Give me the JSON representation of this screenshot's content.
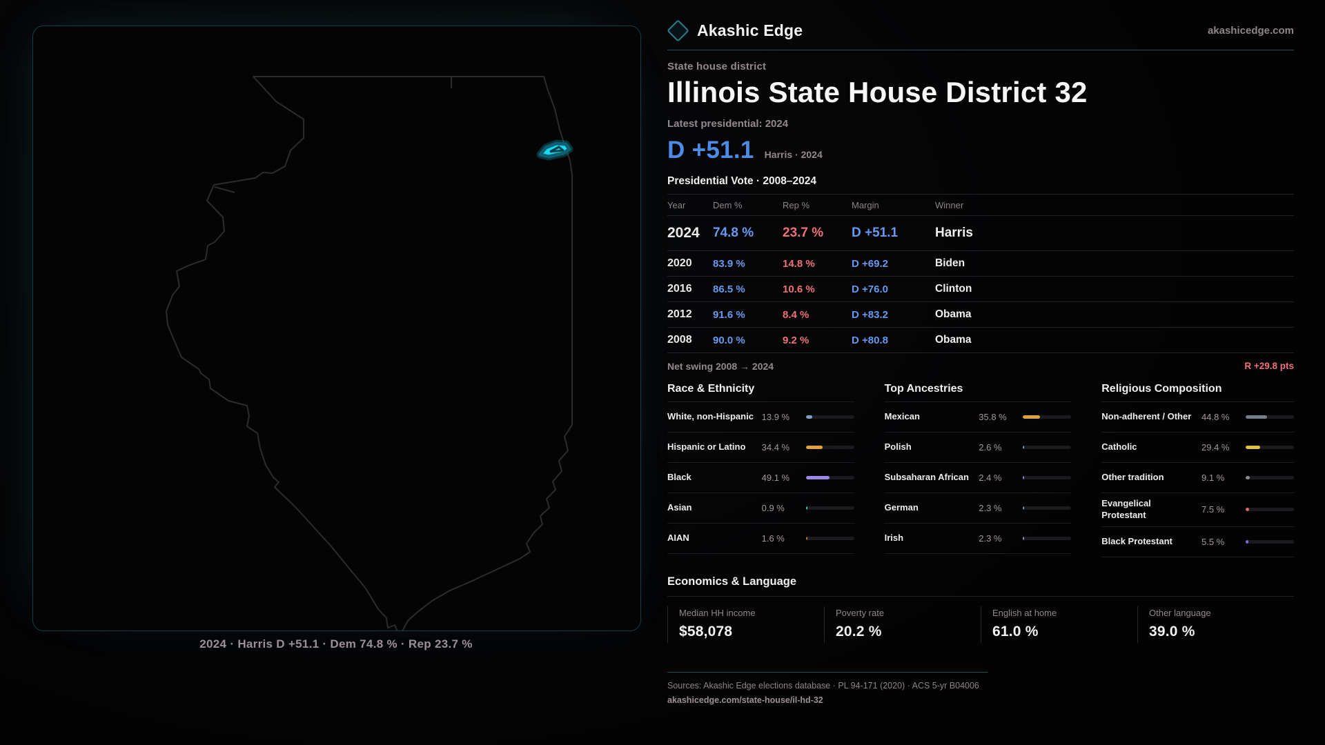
{
  "brand": {
    "name": "Akashic Edge",
    "domain": "akashicedge.com",
    "logo_icon": "diamond-icon",
    "accent_teal": "#2c7f92"
  },
  "page": {
    "eyebrow": "State house district",
    "title": "Illinois State House District 32",
    "latest_label": "Latest presidential: 2024",
    "headline_margin": "D +51.1",
    "headline_note": "Harris · 2024"
  },
  "map": {
    "caption": "2024 · Harris D +51.1 · Dem 74.8 % · Rep 23.7 %",
    "district_fill": "#1fd7f0",
    "district_stroke": "#0d5f72",
    "outline_color": "#2c2c30"
  },
  "vote_table": {
    "title": "Presidential Vote · 2008–2024",
    "columns": [
      "Year",
      "Dem %",
      "Rep %",
      "Margin",
      "Winner"
    ],
    "rows": [
      {
        "year": "2024",
        "dem": "74.8 %",
        "rep": "23.7 %",
        "margin": "D +51.1",
        "winner": "Harris",
        "highlight": true
      },
      {
        "year": "2020",
        "dem": "83.9 %",
        "rep": "14.8 %",
        "margin": "D +69.2",
        "winner": "Biden",
        "highlight": false
      },
      {
        "year": "2016",
        "dem": "86.5 %",
        "rep": "10.6 %",
        "margin": "D +76.0",
        "winner": "Clinton",
        "highlight": false
      },
      {
        "year": "2012",
        "dem": "91.6 %",
        "rep": "8.4 %",
        "margin": "D +83.2",
        "winner": "Obama",
        "highlight": false
      },
      {
        "year": "2008",
        "dem": "90.0 %",
        "rep": "9.2 %",
        "margin": "D +80.8",
        "winner": "Obama",
        "highlight": false
      }
    ],
    "dem_color": "#679af0",
    "rep_color": "#ef7179",
    "net_swing_label": "Net swing 2008 → 2024",
    "net_swing_value": "R +29.8 pts"
  },
  "chart_data": [
    {
      "type": "bar",
      "title": "Race & Ethnicity",
      "categories": [
        "White, non-Hispanic",
        "Hispanic or Latino",
        "Black",
        "Asian",
        "AIAN"
      ],
      "values": [
        13.9,
        34.4,
        49.1,
        0.9,
        1.6
      ],
      "value_labels": [
        "13.9 %",
        "34.4 %",
        "49.1 %",
        "0.9 %",
        "1.6 %"
      ],
      "bar_colors": [
        "#7f9fc4",
        "#e2a23b",
        "#9d85ea",
        "#3ecfa5",
        "#cf7a33"
      ],
      "xlim": [
        0,
        100
      ]
    },
    {
      "type": "bar",
      "title": "Top Ancestries",
      "categories": [
        "Mexican",
        "Polish",
        "Subsaharan African",
        "German",
        "Irish"
      ],
      "values": [
        35.8,
        2.6,
        2.4,
        2.3,
        2.3
      ],
      "value_labels": [
        "35.8 %",
        "2.6 %",
        "2.4 %",
        "2.3 %",
        "2.3 %"
      ],
      "bar_colors": [
        "#e2a23b",
        "#7f9fc4",
        "#9d85ea",
        "#7f9fc4",
        "#7f9fc4"
      ],
      "xlim": [
        0,
        100
      ]
    },
    {
      "type": "bar",
      "title": "Religious Composition",
      "categories": [
        "Non-adherent / Other",
        "Catholic",
        "Other tradition",
        "Evangelical Protestant",
        "Black Protestant"
      ],
      "values": [
        44.8,
        29.4,
        9.1,
        7.5,
        5.5
      ],
      "value_labels": [
        "44.8 %",
        "29.4 %",
        "9.1 %",
        "7.5 %",
        "5.5 %"
      ],
      "bar_colors": [
        "#747e8d",
        "#e0c23c",
        "#8b8b92",
        "#e06a6a",
        "#7a6ae8"
      ],
      "xlim": [
        0,
        100
      ]
    }
  ],
  "economics": {
    "title": "Economics & Language",
    "stats": [
      {
        "label": "Median HH income",
        "value": "$58,078"
      },
      {
        "label": "Poverty rate",
        "value": "20.2 %"
      },
      {
        "label": "English at home",
        "value": "61.0 %"
      },
      {
        "label": "Other language",
        "value": "39.0 %"
      }
    ]
  },
  "footer": {
    "sources": "Sources: Akashic Edge elections database · PL 94-171 (2020) · ACS 5-yr B04006",
    "permalink": "akashicedge.com/state-house/il-hd-32"
  }
}
